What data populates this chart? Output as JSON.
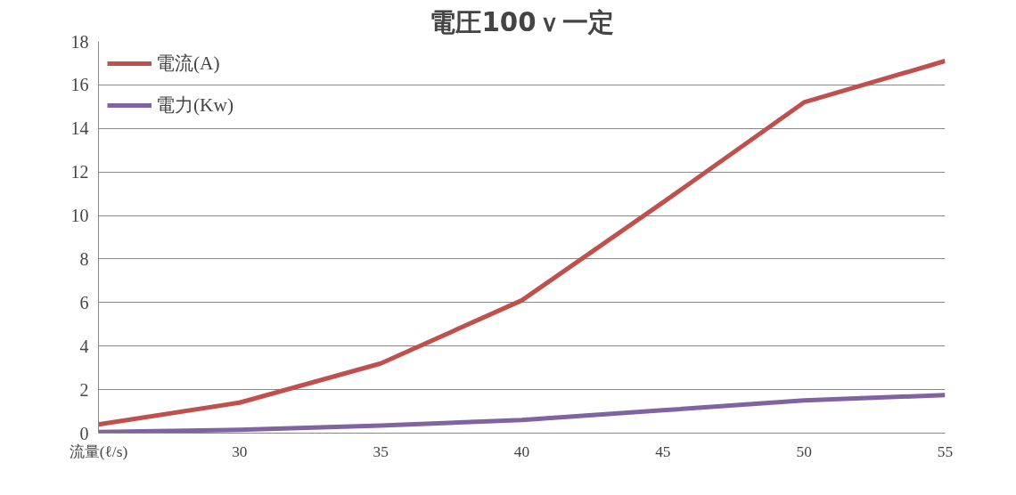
{
  "chart_data": {
    "type": "line",
    "title": "電圧100ｖ一定",
    "x": [
      25,
      30,
      35,
      40,
      45,
      50,
      55
    ],
    "series": [
      {
        "name": "電流(A)",
        "color": "#c0504d",
        "values": [
          0.4,
          1.4,
          3.2,
          6.1,
          10.6,
          15.2,
          17.1
        ]
      },
      {
        "name": "電力(Kw)",
        "color": "#8064a2",
        "values": [
          0.05,
          0.15,
          0.35,
          0.6,
          1.05,
          1.5,
          1.75
        ]
      }
    ],
    "xlim": [
      25,
      55
    ],
    "xticks": [
      {
        "value": 25,
        "label": "流量(ℓ/s)"
      },
      30,
      35,
      40,
      45,
      50,
      55
    ],
    "ylim": [
      0,
      18
    ],
    "yticks": [
      0,
      2,
      4,
      6,
      8,
      10,
      12,
      14,
      16,
      18
    ],
    "grid": "y",
    "legend": "top left",
    "marker": "none",
    "line_style": "solid"
  }
}
